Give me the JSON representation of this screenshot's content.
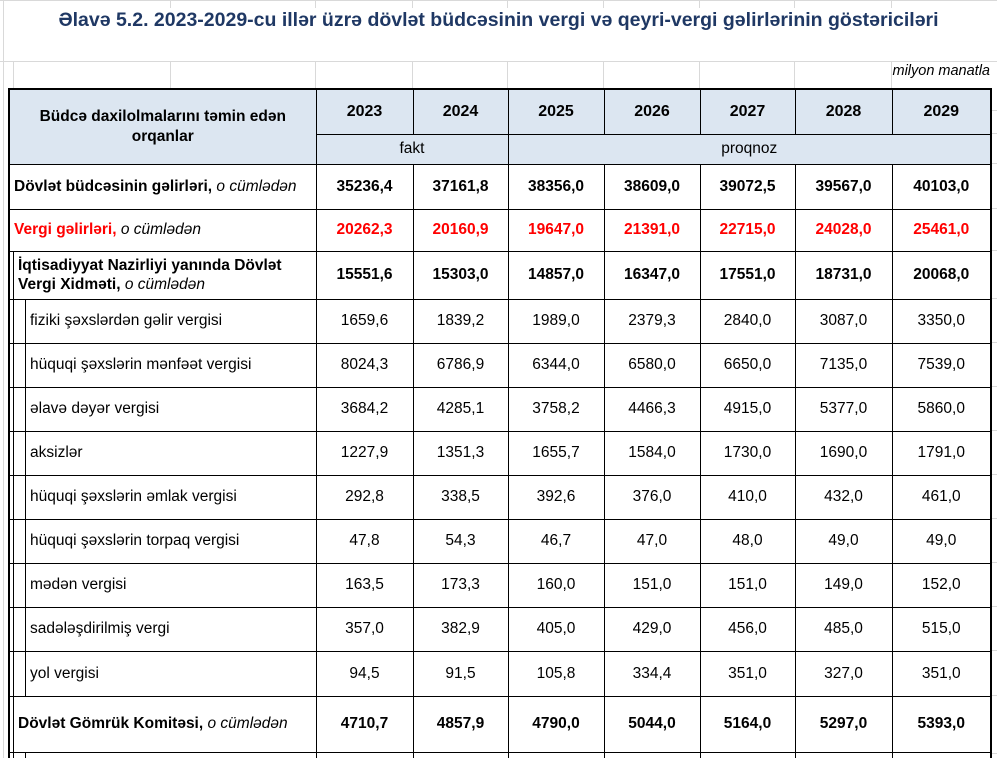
{
  "title": "Əlavə 5.2. 2023-2029-cu illər üzrə dövlət büdcəsinin vergi və qeyri-vergi gəlirlərinin göstəriciləri",
  "unit_note": "milyon manatla",
  "colors": {
    "title_navy": "#1F3864",
    "header_bg": "#DCE6F1",
    "red": "#FF0000",
    "border": "#000000",
    "gridline": "#D9D9D9"
  },
  "table": {
    "header": {
      "row_label_header": "Büdcə daxilolmalarını təmin edən orqanlar",
      "years": [
        "2023",
        "2024",
        "2025",
        "2026",
        "2027",
        "2028",
        "2029"
      ],
      "fact_label": "fakt",
      "forecast_label": "proqnoz",
      "fact_span": 2,
      "forecast_span": 5
    },
    "rows": [
      {
        "label": "Dövlət büdcəsinin gəlirləri,",
        "suffix": " o cümlədən",
        "indent": 0,
        "bold": true,
        "red": false,
        "values": [
          "35236,4",
          "37161,8",
          "38356,0",
          "38609,0",
          "39072,5",
          "39567,0",
          "40103,0"
        ]
      },
      {
        "label": "Vergi gəlirləri,",
        "suffix": " o cümlədən",
        "indent": 0,
        "bold": true,
        "red": true,
        "values": [
          "20262,3",
          "20160,9",
          "19647,0",
          "21391,0",
          "22715,0",
          "24028,0",
          "25461,0"
        ]
      },
      {
        "label": "İqtisadiyyat Nazirliyi yanında Dövlət Vergi Xidməti,",
        "suffix": " o cümlədən",
        "indent": 1,
        "bold": true,
        "red": false,
        "values": [
          "15551,6",
          "15303,0",
          "14857,0",
          "16347,0",
          "17551,0",
          "18731,0",
          "20068,0"
        ]
      },
      {
        "label": "fiziki şəxslərdən gəlir vergisi",
        "suffix": "",
        "indent": 2,
        "bold": false,
        "red": false,
        "values": [
          "1659,6",
          "1839,2",
          "1989,0",
          "2379,3",
          "2840,0",
          "3087,0",
          "3350,0"
        ]
      },
      {
        "label": "hüquqi şəxslərin mənfəət vergisi",
        "suffix": "",
        "indent": 2,
        "bold": false,
        "red": false,
        "values": [
          "8024,3",
          "6786,9",
          "6344,0",
          "6580,0",
          "6650,0",
          "7135,0",
          "7539,0"
        ]
      },
      {
        "label": "əlavə dəyər vergisi",
        "suffix": "",
        "indent": 2,
        "bold": false,
        "red": false,
        "values": [
          "3684,2",
          "4285,1",
          "3758,2",
          "4466,3",
          "4915,0",
          "5377,0",
          "5860,0"
        ]
      },
      {
        "label": "aksizlər",
        "suffix": "",
        "indent": 2,
        "bold": false,
        "red": false,
        "values": [
          "1227,9",
          "1351,3",
          "1655,7",
          "1584,0",
          "1730,0",
          "1690,0",
          "1791,0"
        ]
      },
      {
        "label": "hüquqi şəxslərin əmlak vergisi",
        "suffix": "",
        "indent": 2,
        "bold": false,
        "red": false,
        "values": [
          "292,8",
          "338,5",
          "392,6",
          "376,0",
          "410,0",
          "432,0",
          "461,0"
        ]
      },
      {
        "label": "hüquqi şəxslərin torpaq vergisi",
        "suffix": "",
        "indent": 2,
        "bold": false,
        "red": false,
        "values": [
          "47,8",
          "54,3",
          "46,7",
          "47,0",
          "48,0",
          "49,0",
          "49,0"
        ]
      },
      {
        "label": "mədən vergisi",
        "suffix": "",
        "indent": 2,
        "bold": false,
        "red": false,
        "values": [
          "163,5",
          "173,3",
          "160,0",
          "151,0",
          "151,0",
          "149,0",
          "152,0"
        ]
      },
      {
        "label": "sadələşdirilmiş  vergi",
        "suffix": "",
        "indent": 2,
        "bold": false,
        "red": false,
        "values": [
          "357,0",
          "382,9",
          "405,0",
          "429,0",
          "456,0",
          "485,0",
          "515,0"
        ]
      },
      {
        "label": "yol vergisi",
        "suffix": "",
        "indent": 2,
        "bold": false,
        "red": false,
        "values": [
          "94,5",
          "91,5",
          "105,8",
          "334,4",
          "351,0",
          "327,0",
          "351,0"
        ]
      },
      {
        "label": "Dövlət Gömrük Komitəsi,",
        "suffix": " o cümlədən",
        "indent": 1,
        "bold": true,
        "red": false,
        "values": [
          "4710,7",
          "4857,9",
          "4790,0",
          "5044,0",
          "5164,0",
          "5297,0",
          "5393,0"
        ]
      }
    ]
  }
}
